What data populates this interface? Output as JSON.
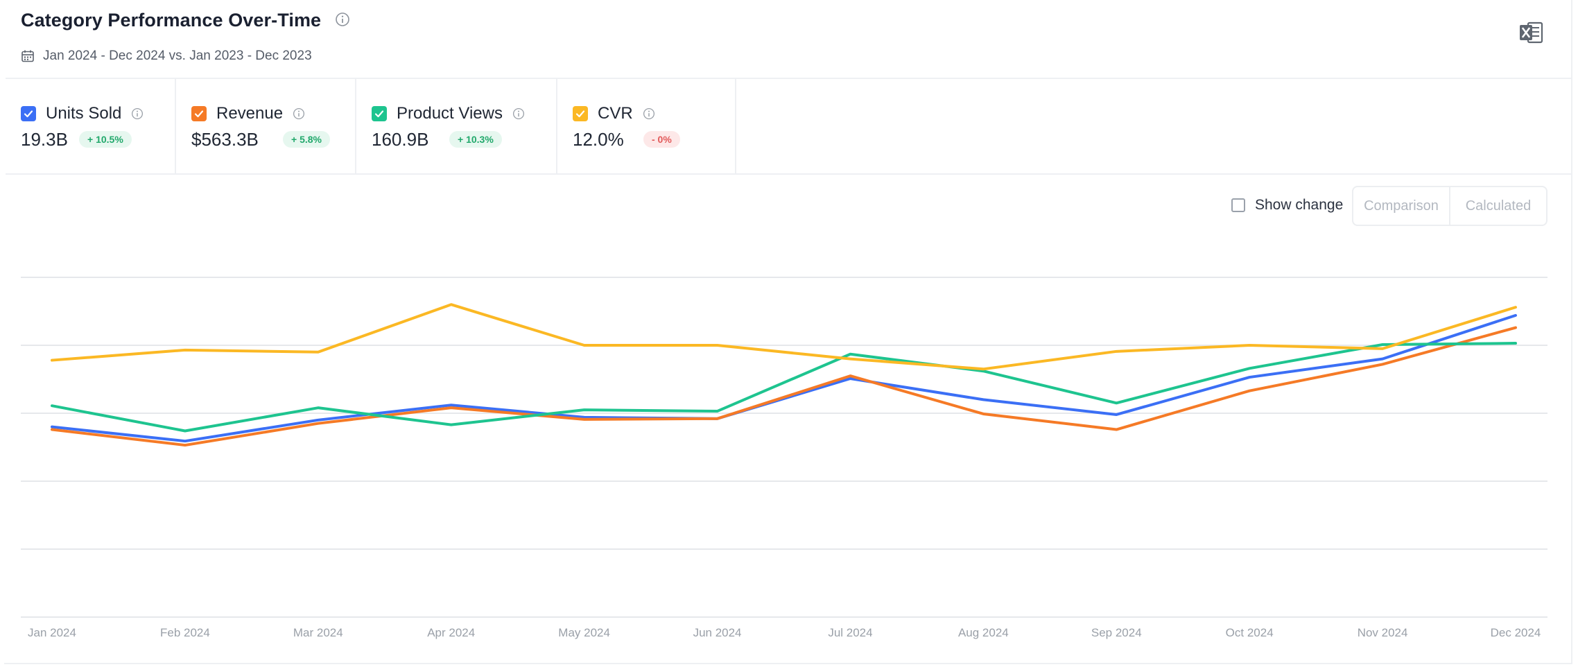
{
  "header": {
    "title": "Category Performance Over-Time",
    "date_range": "Jan 2024 - Dec 2024 vs. Jan 2023 - Dec 2023"
  },
  "metrics": [
    {
      "label": "Units Sold",
      "value": "19.3B",
      "change": "+ 10.5%",
      "color": "#3b6ff5",
      "trend": "positive",
      "checked": true
    },
    {
      "label": "Revenue",
      "value": "$563.3B",
      "change": "+ 5.8%",
      "color": "#f57a26",
      "trend": "positive",
      "checked": true
    },
    {
      "label": "Product Views",
      "value": "160.9B",
      "change": "+ 10.3%",
      "color": "#1ec48f",
      "trend": "positive",
      "checked": true
    },
    {
      "label": "CVR",
      "value": "12.0%",
      "change": "- 0%",
      "color": "#fbb824",
      "trend": "negative",
      "checked": true
    }
  ],
  "controls": {
    "show_change_label": "Show change",
    "show_change_checked": false,
    "toggle": [
      "Comparison",
      "Calculated"
    ]
  },
  "icons": {
    "calendar": "calendar-icon",
    "export": "excel-export-icon",
    "info": "info-icon",
    "check": "checkmark-icon"
  },
  "chart_data": {
    "type": "line",
    "x": [
      "Jan 2024",
      "Feb 2024",
      "Mar 2024",
      "Apr 2024",
      "May 2024",
      "Jun 2024",
      "Jul 2024",
      "Aug 2024",
      "Sep 2024",
      "Oct 2024",
      "Nov 2024",
      "Dec 2024"
    ],
    "ylim": [
      0,
      5
    ],
    "y_ticks_shown": false,
    "grid": true,
    "legend": "top-left",
    "series": [
      {
        "name": "Units Sold",
        "color": "#3b6ff5",
        "values": [
          2.8,
          2.59,
          2.9,
          3.12,
          2.94,
          2.92,
          3.51,
          3.2,
          2.98,
          3.53,
          3.8,
          4.44
        ]
      },
      {
        "name": "Revenue",
        "color": "#f57a26",
        "values": [
          2.76,
          2.53,
          2.85,
          3.08,
          2.91,
          2.92,
          3.55,
          2.99,
          2.76,
          3.33,
          3.72,
          4.26
        ]
      },
      {
        "name": "Product Views",
        "color": "#1ec48f",
        "values": [
          3.11,
          2.74,
          3.08,
          2.83,
          3.05,
          3.03,
          3.87,
          3.62,
          3.15,
          3.66,
          4.01,
          4.03
        ]
      },
      {
        "name": "CVR",
        "color": "#fbb824",
        "values": [
          3.78,
          3.93,
          3.9,
          4.6,
          4.0,
          4.0,
          3.8,
          3.65,
          3.91,
          4.0,
          3.95,
          4.56
        ]
      }
    ]
  }
}
